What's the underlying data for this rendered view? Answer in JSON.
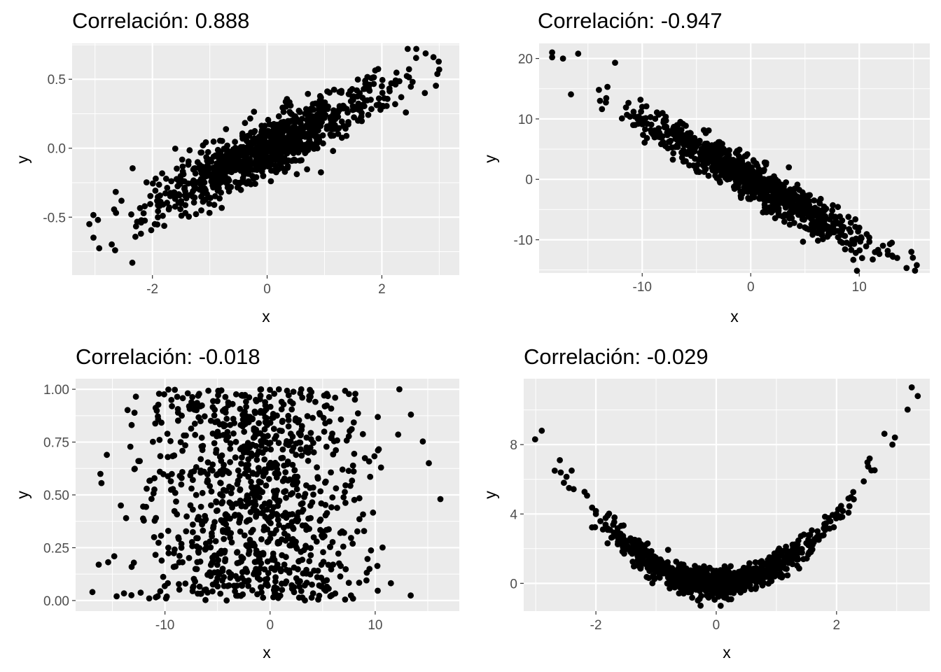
{
  "colors": {
    "panel_bg": "#ebebeb",
    "grid": "#ffffff",
    "point": "#000000",
    "tick_text": "#4d4d4d"
  },
  "chart_data": [
    {
      "type": "scatter",
      "title": "Correlación: 0.888",
      "xlabel": "x",
      "ylabel": "y",
      "xlim": [
        -3.4,
        3.35
      ],
      "ylim": [
        -0.92,
        0.76
      ],
      "xticks": [
        -2,
        0,
        2
      ],
      "xtick_labels": [
        "-2",
        "0",
        "2"
      ],
      "yticks": [
        -0.5,
        0.0,
        0.5
      ],
      "ytick_labels": [
        "-0.5",
        "0.0",
        "0.5"
      ],
      "grid": true,
      "n_points": 1000,
      "correlation": 0.888,
      "relationship": "linear-positive",
      "points_sample": [
        [
          -3.1,
          -0.55
        ],
        [
          -2.95,
          -0.52
        ],
        [
          -2.65,
          -0.74
        ],
        [
          -2.35,
          -0.83
        ],
        [
          -2.2,
          -0.62
        ],
        [
          -1.5,
          -0.4
        ],
        [
          -1.0,
          -0.2
        ],
        [
          -0.5,
          -0.1
        ],
        [
          0.0,
          0.0
        ],
        [
          0.5,
          0.12
        ],
        [
          1.0,
          0.22
        ],
        [
          1.5,
          0.35
        ],
        [
          2.0,
          0.45
        ],
        [
          2.45,
          0.72
        ],
        [
          2.6,
          0.72
        ],
        [
          2.75,
          0.4
        ],
        [
          2.9,
          0.66
        ],
        [
          3.0,
          0.57
        ]
      ]
    },
    {
      "type": "scatter",
      "title": "Correlación: -0.947",
      "xlabel": "x",
      "ylabel": "y",
      "xlim": [
        -19.5,
        16.5
      ],
      "ylim": [
        -15.5,
        22.5
      ],
      "xticks": [
        -10,
        0,
        10
      ],
      "xtick_labels": [
        "-10",
        "0",
        "10"
      ],
      "yticks": [
        -10,
        0,
        10,
        20
      ],
      "ytick_labels": [
        "-10",
        "0",
        "10",
        "20"
      ],
      "grid": true,
      "n_points": 1000,
      "correlation": -0.947,
      "relationship": "linear-negative",
      "points_sample": [
        [
          -18.3,
          21.0
        ],
        [
          -18.3,
          20.2
        ],
        [
          -17.3,
          20.0
        ],
        [
          -15.9,
          20.8
        ],
        [
          -12.5,
          19.3
        ],
        [
          -13.2,
          15.3
        ],
        [
          -10.0,
          12.0
        ],
        [
          -5.0,
          6.0
        ],
        [
          0.0,
          0.0
        ],
        [
          5.0,
          -5.0
        ],
        [
          10.0,
          -8.0
        ],
        [
          13.0,
          -10.5
        ],
        [
          14.8,
          -12.0
        ],
        [
          15.3,
          -14.2
        ]
      ]
    },
    {
      "type": "scatter",
      "title": "Correlación: -0.018",
      "xlabel": "x",
      "ylabel": "y",
      "xlim": [
        -18.5,
        18.0
      ],
      "ylim": [
        -0.05,
        1.05
      ],
      "xticks": [
        -10,
        0,
        10
      ],
      "xtick_labels": [
        "-10",
        "0",
        "10"
      ],
      "yticks": [
        0.0,
        0.25,
        0.5,
        0.75,
        1.0
      ],
      "ytick_labels": [
        "0.00",
        "0.25",
        "0.50",
        "0.75",
        "1.00"
      ],
      "grid": true,
      "n_points": 1000,
      "correlation": -0.018,
      "relationship": "none",
      "points_sample": [
        [
          -16.9,
          0.04
        ],
        [
          -16.3,
          0.17
        ],
        [
          -14.6,
          0.02
        ],
        [
          -14.2,
          0.45
        ],
        [
          -13.7,
          0.39
        ],
        [
          -12.4,
          0.66
        ],
        [
          -11.5,
          0.01
        ],
        [
          -9.9,
          0.01
        ],
        [
          12.3,
          1.0
        ],
        [
          13.4,
          0.88
        ],
        [
          15.1,
          0.65
        ],
        [
          16.2,
          0.48
        ]
      ]
    },
    {
      "type": "scatter",
      "title": "Correlación: -0.029",
      "xlabel": "x",
      "ylabel": "y",
      "xlim": [
        -3.2,
        3.55
      ],
      "ylim": [
        -1.6,
        11.8
      ],
      "xticks": [
        -2,
        0,
        2
      ],
      "xtick_labels": [
        "-2",
        "0",
        "2"
      ],
      "yticks": [
        0,
        4,
        8
      ],
      "ytick_labels": [
        "0",
        "4",
        "8"
      ],
      "grid": true,
      "n_points": 1000,
      "correlation": -0.029,
      "relationship": "quadratic (y = x^2 + noise)",
      "points_sample": [
        [
          -2.9,
          8.8
        ],
        [
          -2.6,
          7.1
        ],
        [
          -2.0,
          4.0
        ],
        [
          -1.0,
          1.0
        ],
        [
          0.0,
          0.0
        ],
        [
          1.0,
          1.0
        ],
        [
          2.0,
          4.0
        ],
        [
          2.55,
          7.2
        ],
        [
          3.25,
          11.3
        ],
        [
          3.35,
          10.8
        ]
      ]
    }
  ]
}
